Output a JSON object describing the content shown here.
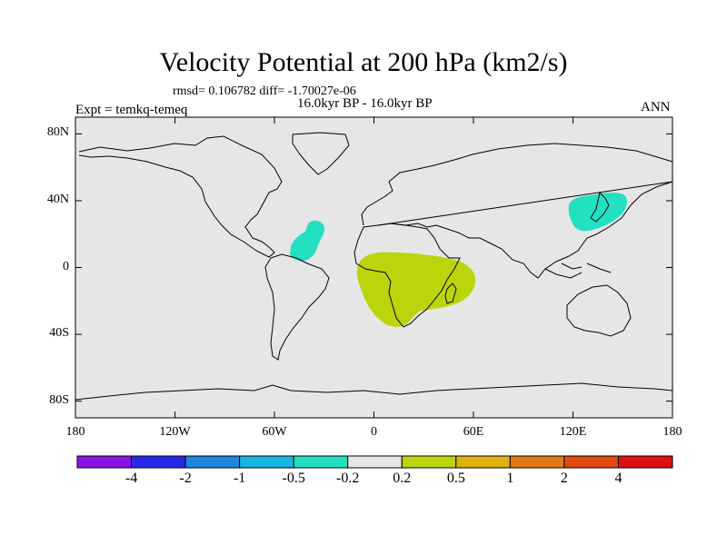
{
  "title": "Velocity Potential at 200 hPa (km2/s)",
  "stats": "rmsd= 0.106782 diff= -1.70027e-06",
  "period": "16.0kyr BP - 16.0kyr BP",
  "expt": "Expt = temkq-temeq",
  "season": "ANN",
  "map": {
    "background_color": "#e6e6e6",
    "y_ticks": [
      {
        "label": "80N",
        "lat": 80
      },
      {
        "label": "40N",
        "lat": 40
      },
      {
        "label": "0",
        "lat": 0
      },
      {
        "label": "40S",
        "lat": -40
      },
      {
        "label": "80S",
        "lat": -80
      }
    ],
    "x_ticks": [
      {
        "label": "180",
        "lon": -180
      },
      {
        "label": "120W",
        "lon": -120
      },
      {
        "label": "60W",
        "lon": -60
      },
      {
        "label": "0",
        "lon": 0
      },
      {
        "label": "60E",
        "lon": 60
      },
      {
        "label": "120E",
        "lon": 120
      },
      {
        "label": "180",
        "lon": 180
      }
    ],
    "anomalies": [
      {
        "name": "atlantic-negative-anomaly",
        "color": "#22e0c0",
        "range": "-0.5 to -0.2"
      },
      {
        "name": "africa-positive-anomaly",
        "color": "#bcd40c",
        "range": "0.2 to 0.5"
      },
      {
        "name": "east-asia-negative-anomaly",
        "color": "#22e0c0",
        "range": "-0.5 to -0.2"
      }
    ]
  },
  "colorbar": {
    "colors": [
      "#8a14e6",
      "#2a2ae6",
      "#1f86e0",
      "#18b6e0",
      "#22e0c0",
      "#e6e6e6",
      "#bcd40c",
      "#e0b010",
      "#e07a12",
      "#e04a10",
      "#e01010"
    ],
    "labels": [
      "-4",
      "-2",
      "-1",
      "-0.5",
      "-0.2",
      "0.2",
      "0.5",
      "1",
      "2",
      "4"
    ]
  }
}
